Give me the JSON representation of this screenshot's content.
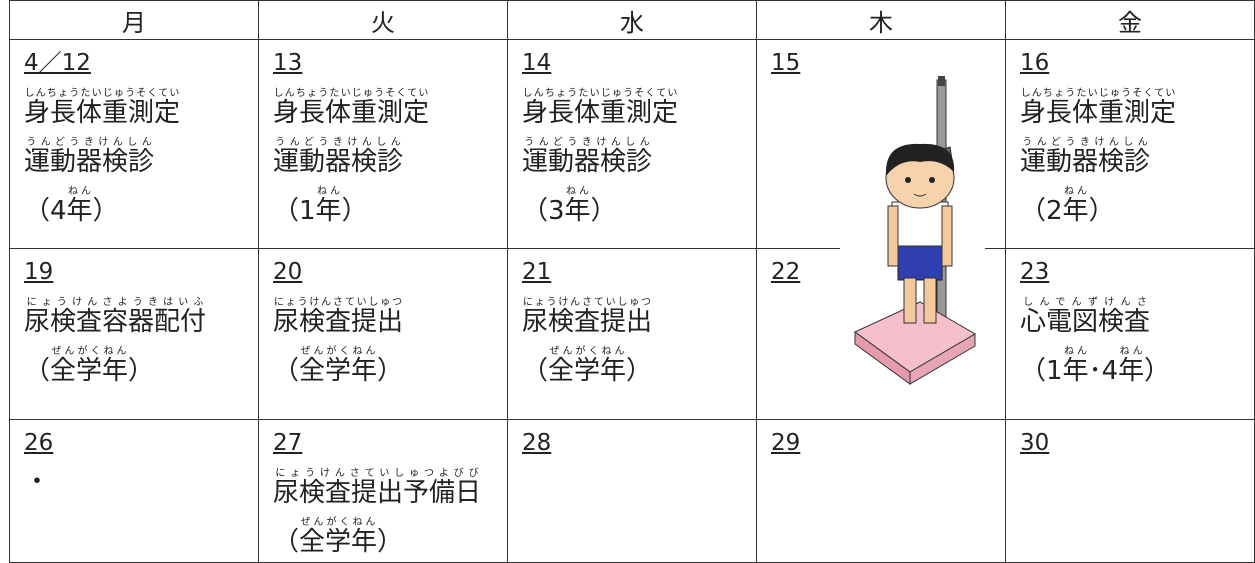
{
  "header": {
    "days": [
      "月",
      "火",
      "水",
      "木",
      "金"
    ]
  },
  "weeks": [
    [
      {
        "date": "4／12",
        "lines": [
          [
            {
              "text": "身長体重測定",
              "ruby": "しんちょうたいじゅうそくてい"
            }
          ],
          [
            {
              "text": "運動器検診",
              "ruby": "うんどうきけんしん"
            }
          ],
          [
            {
              "text": "（4"
            },
            {
              "text": "年",
              "ruby": "ねん"
            },
            {
              "text": "）"
            }
          ]
        ]
      },
      {
        "date": "13",
        "lines": [
          [
            {
              "text": "身長体重測定",
              "ruby": "しんちょうたいじゅうそくてい"
            }
          ],
          [
            {
              "text": "運動器検診",
              "ruby": "うんどうきけんしん"
            }
          ],
          [
            {
              "text": "（1"
            },
            {
              "text": "年",
              "ruby": "ねん"
            },
            {
              "text": "）"
            }
          ]
        ]
      },
      {
        "date": "14",
        "lines": [
          [
            {
              "text": "身長体重測定",
              "ruby": "しんちょうたいじゅうそくてい"
            }
          ],
          [
            {
              "text": "運動器検診",
              "ruby": "うんどうきけんしん"
            }
          ],
          [
            {
              "text": "（3"
            },
            {
              "text": "年",
              "ruby": "ねん"
            },
            {
              "text": "）"
            }
          ]
        ]
      },
      {
        "date": "15",
        "lines": []
      },
      {
        "date": "16",
        "lines": [
          [
            {
              "text": "身長体重測定",
              "ruby": "しんちょうたいじゅうそくてい"
            }
          ],
          [
            {
              "text": "運動器検診",
              "ruby": "うんどうきけんしん"
            }
          ],
          [
            {
              "text": "（2"
            },
            {
              "text": "年",
              "ruby": "ねん"
            },
            {
              "text": "）"
            }
          ]
        ]
      }
    ],
    [
      {
        "date": "19",
        "lines": [
          [
            {
              "text": "尿検査容器配付",
              "ruby": "にょうけんさようきはいふ"
            }
          ],
          [
            {
              "text": "（"
            },
            {
              "text": "全学年",
              "ruby": "ぜんがくねん"
            },
            {
              "text": "）"
            }
          ]
        ]
      },
      {
        "date": "20",
        "lines": [
          [
            {
              "text": "尿検査提出",
              "ruby": "にょうけんさていしゅつ"
            }
          ],
          [
            {
              "text": "（"
            },
            {
              "text": "全学年",
              "ruby": "ぜんがくねん"
            },
            {
              "text": "）"
            }
          ]
        ]
      },
      {
        "date": "21",
        "lines": [
          [
            {
              "text": "尿検査提出",
              "ruby": "にょうけんさていしゅつ"
            }
          ],
          [
            {
              "text": "（"
            },
            {
              "text": "全学年",
              "ruby": "ぜんがくねん"
            },
            {
              "text": "）"
            }
          ]
        ]
      },
      {
        "date": "22",
        "lines": []
      },
      {
        "date": "23",
        "lines": [
          [
            {
              "text": "心電図検査",
              "ruby": "しんでんずけんさ"
            }
          ],
          [
            {
              "text": "（1"
            },
            {
              "text": "年",
              "ruby": "ねん"
            },
            {
              "text": "･4"
            },
            {
              "text": "年",
              "ruby": "ねん"
            },
            {
              "text": "）"
            }
          ]
        ]
      }
    ],
    [
      {
        "date": "26",
        "lines": [
          [
            {
              "text": "・"
            }
          ]
        ]
      },
      {
        "date": "27",
        "lines": [
          [
            {
              "text": "尿検査提出予備日",
              "ruby": "にょうけんさていしゅつよびび"
            }
          ],
          [
            {
              "text": "（"
            },
            {
              "text": "全学年",
              "ruby": "ぜんがくねん"
            },
            {
              "text": "）"
            }
          ]
        ]
      },
      {
        "date": "28",
        "lines": []
      },
      {
        "date": "29",
        "lines": []
      },
      {
        "date": "30",
        "lines": []
      }
    ]
  ]
}
